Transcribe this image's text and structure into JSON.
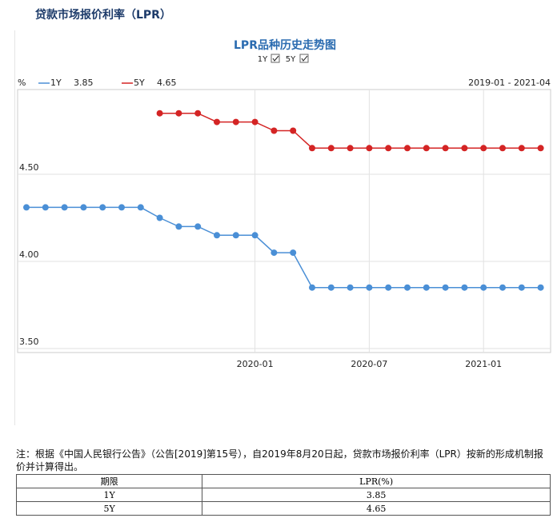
{
  "header": {
    "title": "贷款市场报价利率（LPR）"
  },
  "chart_data": {
    "type": "line",
    "title": "LPR品种历史走势图",
    "toggles": [
      "1Y",
      "5Y"
    ],
    "y_unit": "%",
    "range_label": "2019-01 - 2021-04",
    "categories": [
      null,
      null,
      null,
      null,
      null,
      null,
      null,
      null,
      null,
      null,
      null,
      null,
      "2020-01",
      null,
      null,
      null,
      null,
      null,
      "2020-07",
      null,
      null,
      null,
      null,
      null,
      "2021-01",
      null,
      null,
      null
    ],
    "series": [
      {
        "name": "1Y",
        "color": "#4a8fd6",
        "values": [
          4.31,
          4.31,
          4.31,
          4.31,
          4.31,
          4.31,
          4.31,
          4.25,
          4.2,
          4.2,
          4.15,
          4.15,
          4.15,
          4.05,
          4.05,
          3.85,
          3.85,
          3.85,
          3.85,
          3.85,
          3.85,
          3.85,
          3.85,
          3.85,
          3.85,
          3.85,
          3.85,
          3.85
        ]
      },
      {
        "name": "5Y",
        "color": "#d42424",
        "values": [
          null,
          null,
          null,
          null,
          null,
          null,
          null,
          4.85,
          4.85,
          4.85,
          4.8,
          4.8,
          4.8,
          4.75,
          4.75,
          4.65,
          4.65,
          4.65,
          4.65,
          4.65,
          4.65,
          4.65,
          4.65,
          4.65,
          4.65,
          4.65,
          4.65,
          4.65
        ]
      }
    ],
    "ylim": [
      3.5,
      5.0
    ],
    "yticks": [
      {
        "value": 3.5,
        "label": "3.50"
      },
      {
        "value": 4.0,
        "label": "4.00"
      },
      {
        "value": 4.5,
        "label": "4.50"
      }
    ],
    "grid": true
  },
  "note": "注：根据《中国人民银行公告》（公告[2019]第15号），自2019年8月20日起，贷款市场报价利率（LPR）按新的形成机制报价并计算得出。",
  "table": {
    "headers": [
      "期限",
      "LPR(%)"
    ],
    "rows": [
      [
        "1Y",
        "3.85"
      ],
      [
        "5Y",
        "4.65"
      ]
    ]
  }
}
